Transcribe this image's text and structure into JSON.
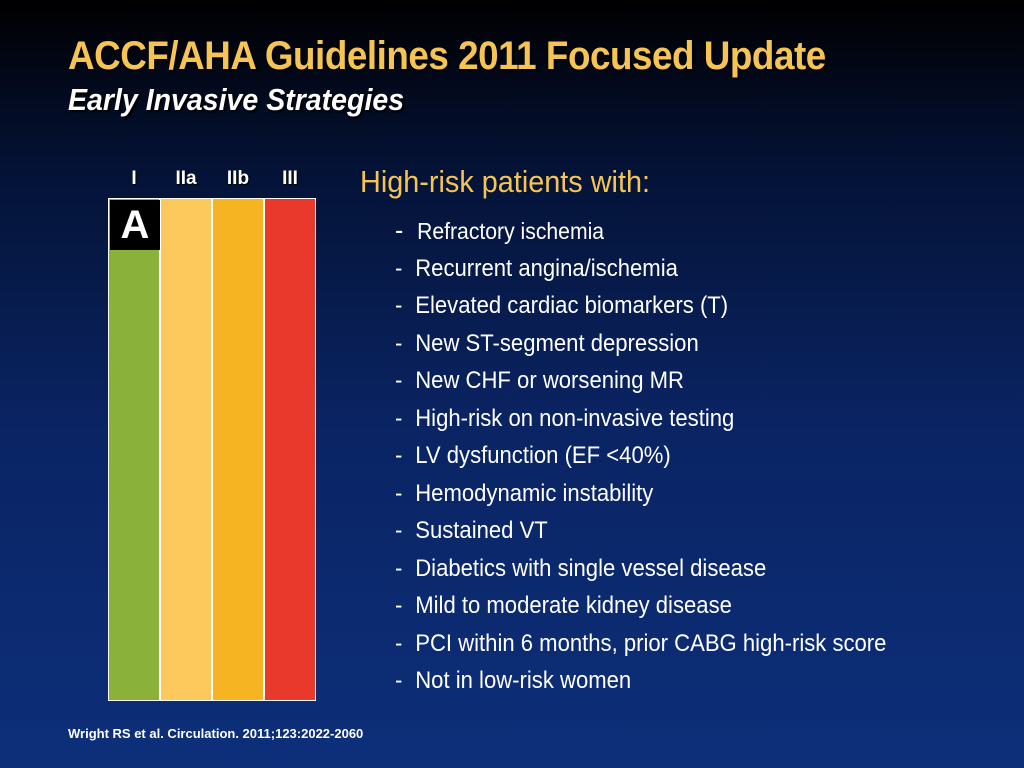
{
  "title": "ACCF/AHA Guidelines 2011 Focused Update",
  "subtitle": "Early Invasive Strategies",
  "recommendation_table": {
    "classes": [
      "I",
      "IIa",
      "IIb",
      "III"
    ],
    "colors": [
      "#8ab23b",
      "#fdc95d",
      "#f7b422",
      "#e8392c"
    ],
    "level_of_evidence": "A"
  },
  "list": {
    "heading": "High-risk patients with:",
    "dash": "-",
    "items": [
      "Refractory ischemia",
      "Recurrent angina/ischemia",
      "Elevated cardiac biomarkers (T)",
      "New ST-segment depression",
      "New CHF or worsening MR",
      "High-risk on non-invasive testing",
      "LV dysfunction (EF <40%)",
      "Hemodynamic instability",
      "Sustained VT",
      "Diabetics with single vessel disease",
      "Mild to moderate kidney disease",
      "PCI within 6 months, prior CABG high-risk score",
      "Not in low-risk women"
    ]
  },
  "citation": "Wright RS et al. Circulation. 2011;123:2022-2060"
}
